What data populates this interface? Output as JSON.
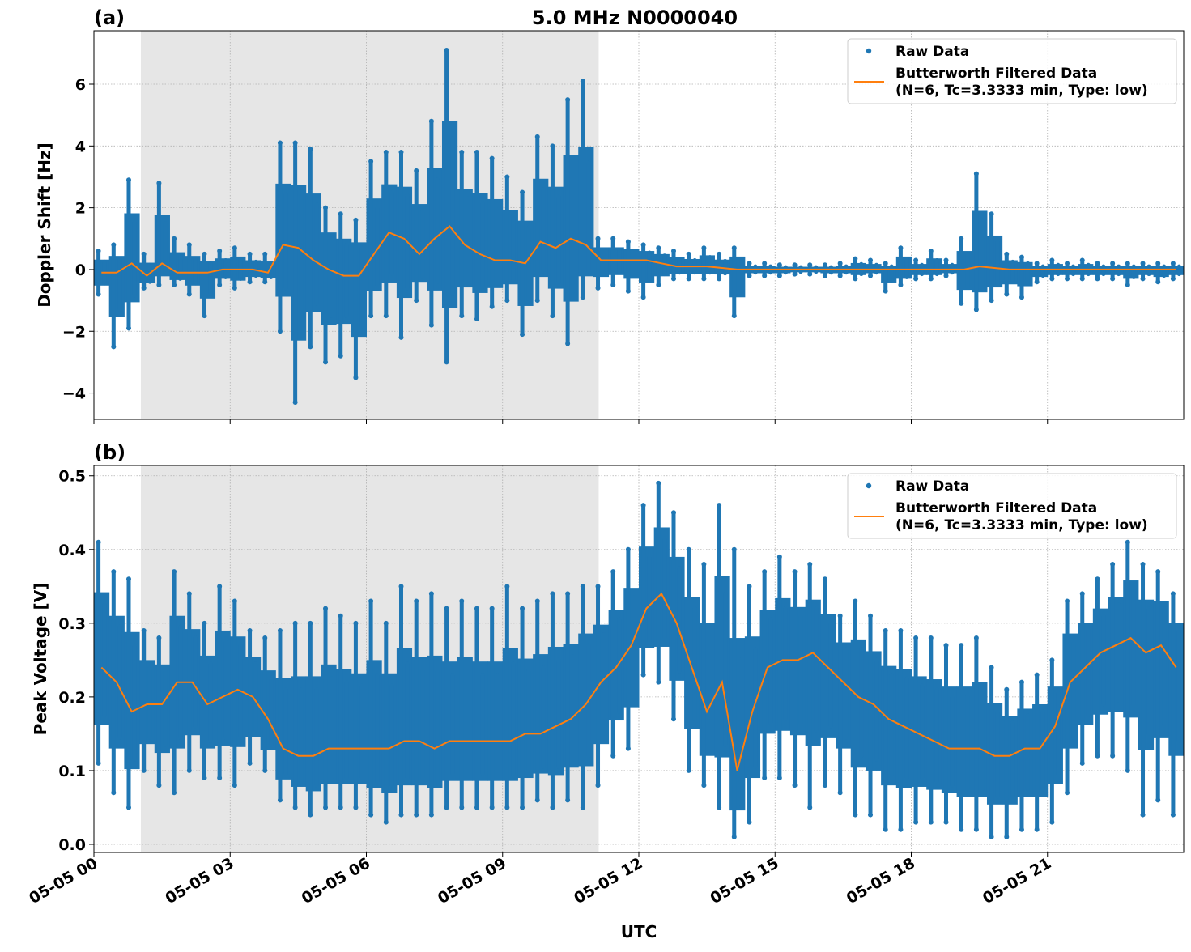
{
  "title": "5.0 MHz N0000040",
  "xlabel": "UTC",
  "x_tick_labels": [
    "05-05 00",
    "05-05 03",
    "05-05 06",
    "05-05 09",
    "05-05 12",
    "05-05 15",
    "05-05 18",
    "05-05 21"
  ],
  "legend": {
    "raw": "Raw Data",
    "filtered_line1": "Butterworth Filtered Data",
    "filtered_line2": "(N=6, Tc=3.3333 min, Type: low)"
  },
  "colors": {
    "raw": "#1f77b4",
    "filtered": "#ff7f0e",
    "shade": "#e6e6e6"
  },
  "chart_data": [
    {
      "type": "scatter",
      "panel_label": "(a)",
      "ylabel": "Doppler Shift [Hz]",
      "xlim": [
        "05-05 00:00",
        "05-06 00:00"
      ],
      "ylim": [
        -4.85,
        7.73
      ],
      "y_ticks": [
        -4,
        -2,
        0,
        2,
        4,
        6
      ],
      "y_tick_labels": [
        "−4",
        "−2",
        "0",
        "2",
        "4",
        "6"
      ],
      "grid": true,
      "legend_position": "top-right",
      "shaded_interval": [
        "01:02",
        "11:07"
      ],
      "bin_minutes": 20,
      "bin_start": [
        "00:00",
        "00:20",
        "00:40",
        "01:00",
        "01:20",
        "01:40",
        "02:00",
        "02:20",
        "02:40",
        "03:00",
        "03:20",
        "03:40",
        "04:00",
        "04:20",
        "04:40",
        "05:00",
        "05:20",
        "05:40",
        "06:00",
        "06:20",
        "06:40",
        "07:00",
        "07:20",
        "07:40",
        "08:00",
        "08:20",
        "08:40",
        "09:00",
        "09:20",
        "09:40",
        "10:00",
        "10:20",
        "10:40",
        "11:00",
        "11:20",
        "11:40",
        "12:00",
        "12:20",
        "12:40",
        "13:00",
        "13:20",
        "13:40",
        "14:00",
        "14:20",
        "14:40",
        "15:00",
        "15:20",
        "15:40",
        "16:00",
        "16:20",
        "16:40",
        "17:00",
        "17:20",
        "17:40",
        "18:00",
        "18:20",
        "18:40",
        "19:00",
        "19:20",
        "19:40",
        "20:00",
        "20:20",
        "20:40",
        "21:00",
        "21:20",
        "21:40",
        "22:00",
        "22:20",
        "22:40",
        "23:00",
        "23:20",
        "23:40"
      ],
      "series": [
        {
          "name": "Raw Data",
          "kind": "range",
          "min": [
            -0.8,
            -2.5,
            -1.9,
            -0.6,
            -0.5,
            -0.5,
            -0.8,
            -1.5,
            -0.5,
            -0.6,
            -0.4,
            -0.4,
            -2.0,
            -4.3,
            -2.5,
            -3.0,
            -2.8,
            -3.5,
            -1.5,
            -1.5,
            -2.2,
            -1.0,
            -1.8,
            -3.0,
            -1.5,
            -1.6,
            -1.2,
            -1.0,
            -2.1,
            -1.0,
            -1.5,
            -2.4,
            -0.9,
            -0.6,
            -0.5,
            -0.7,
            -0.9,
            -0.5,
            -0.3,
            -0.3,
            -0.3,
            -0.3,
            -1.5,
            -0.2,
            -0.2,
            -0.2,
            -0.15,
            -0.15,
            -0.2,
            -0.2,
            -0.3,
            -0.2,
            -0.7,
            -0.5,
            -0.3,
            -0.3,
            -0.2,
            -1.1,
            -1.3,
            -1.0,
            -0.8,
            -0.9,
            -0.4,
            -0.3,
            -0.3,
            -0.3,
            -0.3,
            -0.3,
            -0.5,
            -0.3,
            -0.4,
            -0.3
          ],
          "max": [
            0.6,
            0.8,
            2.9,
            0.5,
            2.8,
            1.0,
            0.8,
            0.5,
            0.6,
            0.7,
            0.5,
            0.5,
            4.1,
            4.1,
            3.9,
            2.0,
            1.8,
            1.6,
            3.5,
            3.8,
            3.8,
            3.2,
            4.8,
            7.1,
            3.8,
            3.8,
            3.6,
            3.0,
            2.5,
            4.3,
            4.0,
            5.5,
            6.1,
            1.0,
            1.0,
            0.9,
            0.8,
            0.7,
            0.6,
            0.5,
            0.7,
            0.5,
            0.7,
            0.2,
            0.2,
            0.15,
            0.15,
            0.15,
            0.15,
            0.2,
            0.35,
            0.3,
            0.2,
            0.7,
            0.3,
            0.6,
            0.3,
            1.0,
            3.1,
            1.8,
            0.5,
            0.4,
            0.2,
            0.3,
            0.2,
            0.3,
            0.2,
            0.2,
            0.2,
            0.2,
            0.2,
            0.2
          ]
        },
        {
          "name": "Butterworth Filtered Data (N=6, Tc=3.3333 min, Type: low)",
          "kind": "line",
          "values": [
            -0.1,
            -0.1,
            0.2,
            -0.2,
            0.2,
            -0.1,
            -0.1,
            -0.1,
            0.0,
            0.0,
            0.0,
            -0.1,
            0.8,
            0.7,
            0.3,
            0.0,
            -0.2,
            -0.2,
            0.5,
            1.2,
            1.0,
            0.5,
            1.0,
            1.4,
            0.8,
            0.5,
            0.3,
            0.3,
            0.2,
            0.9,
            0.7,
            1.0,
            0.8,
            0.3,
            0.3,
            0.3,
            0.3,
            0.2,
            0.1,
            0.1,
            0.1,
            0.05,
            0.0,
            0.0,
            0.0,
            0.0,
            0.0,
            0.0,
            0.0,
            0.0,
            0.0,
            0.0,
            0.0,
            0.0,
            0.0,
            0.0,
            0.0,
            0.0,
            0.1,
            0.05,
            0.0,
            0.0,
            0.0,
            0.0,
            0.0,
            0.0,
            0.0,
            0.0,
            0.0,
            0.0,
            0.0,
            0.0
          ]
        }
      ]
    },
    {
      "type": "scatter",
      "panel_label": "(b)",
      "ylabel": "Peak Voltage [V]",
      "xlim": [
        "05-05 00:00",
        "05-06 00:00"
      ],
      "ylim": [
        -0.011,
        0.514
      ],
      "y_ticks": [
        0.0,
        0.1,
        0.2,
        0.3,
        0.4,
        0.5
      ],
      "y_tick_labels": [
        "0.0",
        "0.1",
        "0.2",
        "0.3",
        "0.4",
        "0.5"
      ],
      "grid": true,
      "legend_position": "top-right",
      "shaded_interval": [
        "01:02",
        "11:07"
      ],
      "bin_minutes": 20,
      "series": [
        {
          "name": "Raw Data",
          "kind": "range",
          "min": [
            0.11,
            0.07,
            0.05,
            0.1,
            0.08,
            0.07,
            0.1,
            0.09,
            0.09,
            0.08,
            0.11,
            0.1,
            0.06,
            0.05,
            0.04,
            0.05,
            0.05,
            0.05,
            0.04,
            0.03,
            0.04,
            0.04,
            0.04,
            0.05,
            0.05,
            0.05,
            0.05,
            0.05,
            0.05,
            0.06,
            0.05,
            0.06,
            0.05,
            0.08,
            0.12,
            0.13,
            0.23,
            0.22,
            0.17,
            0.1,
            0.08,
            0.05,
            0.01,
            0.03,
            0.09,
            0.09,
            0.08,
            0.05,
            0.08,
            0.07,
            0.04,
            0.04,
            0.02,
            0.02,
            0.03,
            0.03,
            0.03,
            0.02,
            0.02,
            0.01,
            0.01,
            0.02,
            0.02,
            0.03,
            0.07,
            0.11,
            0.12,
            0.12,
            0.1,
            0.04,
            0.06,
            0.04
          ],
          "max": [
            0.41,
            0.37,
            0.36,
            0.29,
            0.28,
            0.37,
            0.34,
            0.3,
            0.35,
            0.33,
            0.29,
            0.28,
            0.29,
            0.3,
            0.3,
            0.32,
            0.31,
            0.3,
            0.33,
            0.3,
            0.35,
            0.33,
            0.34,
            0.32,
            0.33,
            0.32,
            0.32,
            0.35,
            0.32,
            0.33,
            0.34,
            0.34,
            0.35,
            0.35,
            0.37,
            0.4,
            0.46,
            0.49,
            0.45,
            0.4,
            0.38,
            0.46,
            0.4,
            0.35,
            0.37,
            0.39,
            0.37,
            0.38,
            0.36,
            0.31,
            0.33,
            0.31,
            0.29,
            0.29,
            0.28,
            0.28,
            0.27,
            0.27,
            0.28,
            0.24,
            0.21,
            0.22,
            0.23,
            0.25,
            0.33,
            0.34,
            0.36,
            0.38,
            0.41,
            0.38,
            0.37,
            0.34
          ]
        },
        {
          "name": "Butterworth Filtered Data (N=6, Tc=3.3333 min, Type: low)",
          "kind": "line",
          "values": [
            0.24,
            0.22,
            0.18,
            0.19,
            0.19,
            0.22,
            0.22,
            0.19,
            0.2,
            0.21,
            0.2,
            0.17,
            0.13,
            0.12,
            0.12,
            0.13,
            0.13,
            0.13,
            0.13,
            0.13,
            0.14,
            0.14,
            0.13,
            0.14,
            0.14,
            0.14,
            0.14,
            0.14,
            0.15,
            0.15,
            0.16,
            0.17,
            0.19,
            0.22,
            0.24,
            0.27,
            0.32,
            0.34,
            0.3,
            0.24,
            0.18,
            0.22,
            0.1,
            0.18,
            0.24,
            0.25,
            0.25,
            0.26,
            0.24,
            0.22,
            0.2,
            0.19,
            0.17,
            0.16,
            0.15,
            0.14,
            0.13,
            0.13,
            0.13,
            0.12,
            0.12,
            0.13,
            0.13,
            0.16,
            0.22,
            0.24,
            0.26,
            0.27,
            0.28,
            0.26,
            0.27,
            0.24
          ]
        }
      ]
    }
  ]
}
